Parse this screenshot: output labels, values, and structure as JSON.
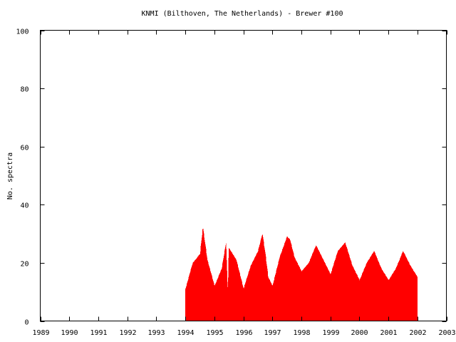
{
  "chart_data": {
    "type": "bar",
    "title": "KNMI (Bilthoven, The Netherlands) - Brewer #100",
    "xlabel": "",
    "ylabel": "No. spectra",
    "xlim": [
      1989,
      2003
    ],
    "ylim": [
      0,
      100
    ],
    "x_ticks": [
      "1989",
      "1990",
      "1991",
      "1992",
      "1993",
      "1994",
      "1995",
      "1996",
      "1997",
      "1998",
      "1999",
      "2000",
      "2001",
      "2002",
      "2003"
    ],
    "y_ticks": [
      "0",
      "20",
      "40",
      "60",
      "80",
      "100"
    ],
    "grid": false,
    "legend": "none",
    "bar_color": "#ff0000",
    "series": [
      {
        "name": "",
        "x": [
          1994.0,
          1994.25,
          1994.5,
          1994.6,
          1994.75,
          1995.0,
          1995.25,
          1995.35,
          1995.4,
          1995.45,
          1995.5,
          1995.75,
          1996.0,
          1996.25,
          1996.5,
          1996.65,
          1996.75,
          1996.85,
          1997.0,
          1997.25,
          1997.5,
          1997.6,
          1997.75,
          1998.0,
          1998.25,
          1998.5,
          1998.75,
          1999.0,
          1999.25,
          1999.5,
          1999.75,
          2000.0,
          2000.25,
          2000.5,
          2000.75,
          2001.0,
          2001.25,
          2001.5,
          2001.75,
          2002.0
        ],
        "values": [
          11,
          20,
          23,
          32,
          21,
          12,
          18,
          24,
          27,
          9,
          25,
          21,
          11,
          19,
          24,
          30,
          23,
          15,
          12,
          22,
          29,
          28,
          22,
          17,
          20,
          26,
          21,
          16,
          24,
          27,
          19,
          14,
          20,
          24,
          18,
          14,
          18,
          24,
          19,
          15
        ]
      }
    ]
  }
}
